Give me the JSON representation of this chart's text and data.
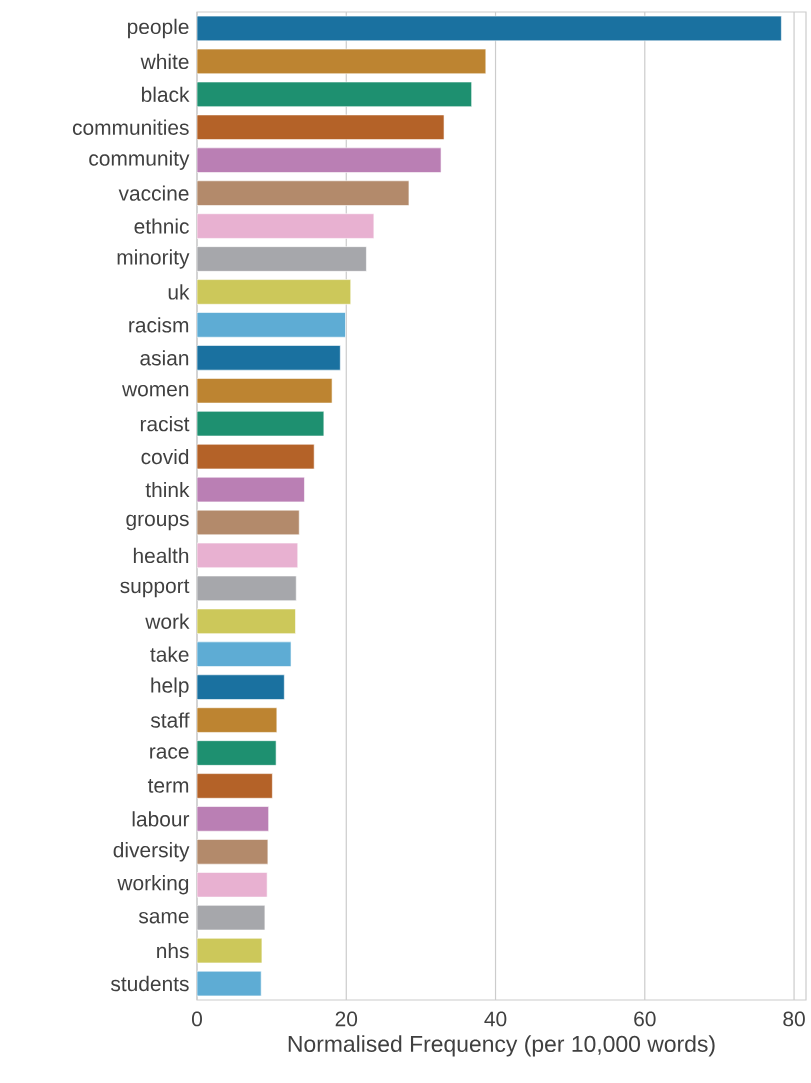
{
  "chart_data": {
    "type": "bar",
    "orientation": "horizontal",
    "xlabel": "Normalised Frequency (per 10,000 words)",
    "categories": [
      "people",
      "white",
      "black",
      "communities",
      "community",
      "vaccine",
      "ethnic",
      "minority",
      "uk",
      "racism",
      "asian",
      "women",
      "racist",
      "covid",
      "think",
      "groups",
      "health",
      "support",
      "work",
      "take",
      "help",
      "staff",
      "race",
      "term",
      "labour",
      "diversity",
      "working",
      "same",
      "nhs",
      "students"
    ],
    "values": [
      78.3,
      38.7,
      36.8,
      33.1,
      32.7,
      28.4,
      23.7,
      22.7,
      20.6,
      19.9,
      19.2,
      18.1,
      17.0,
      15.7,
      14.4,
      13.7,
      13.5,
      13.3,
      13.2,
      12.6,
      11.7,
      10.7,
      10.6,
      10.1,
      9.6,
      9.5,
      9.4,
      9.1,
      8.7,
      8.6
    ],
    "colors": [
      "#1a71a0",
      "#bd8431",
      "#1e9070",
      "#b46228",
      "#ba7fb4",
      "#b38a6b",
      "#e8b1d1",
      "#a6a7ab",
      "#ccc85a",
      "#5eacd4",
      "#1a71a0",
      "#bd8431",
      "#1e9070",
      "#b46228",
      "#ba7fb4",
      "#b38a6b",
      "#e8b1d1",
      "#a6a7ab",
      "#ccc85a",
      "#5eacd4",
      "#1a71a0",
      "#bd8431",
      "#1e9070",
      "#b46228",
      "#ba7fb4",
      "#b38a6b",
      "#e8b1d1",
      "#a6a7ab",
      "#ccc85a",
      "#5eacd4"
    ],
    "xlim": [
      0,
      81.6
    ],
    "xticks": [
      0,
      20,
      40,
      60,
      80
    ],
    "grid": "x"
  }
}
